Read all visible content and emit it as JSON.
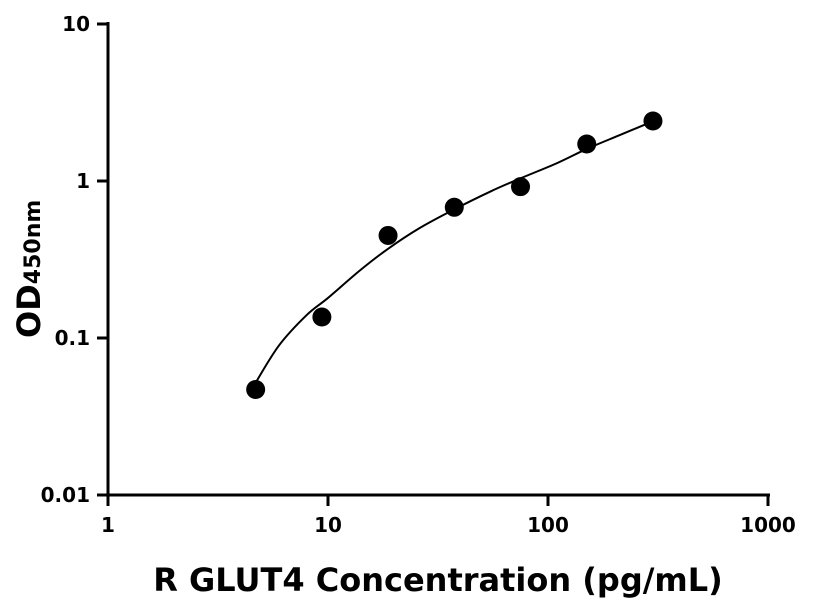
{
  "chart_data": {
    "type": "scatter",
    "xlabel": "R GLUT4 Concentration (pg/mL)",
    "ylabel_main": "OD",
    "ylabel_sub": "450nm",
    "x_scale": "log",
    "y_scale": "log",
    "xlim": [
      1,
      1000
    ],
    "ylim": [
      0.01,
      10
    ],
    "x_ticks": [
      "1",
      "10",
      "100",
      "1000"
    ],
    "y_ticks": [
      "0.01",
      "0.1",
      "1",
      "10"
    ],
    "grid": false,
    "marker_color": "#000000",
    "points": {
      "x": [
        4.69,
        9.38,
        18.75,
        37.5,
        75,
        150,
        300
      ],
      "y": [
        0.047,
        0.136,
        0.45,
        0.68,
        0.92,
        1.72,
        2.41
      ]
    },
    "fit_curve": {
      "x": [
        4.69,
        6,
        8,
        10,
        14,
        18.75,
        26,
        37.5,
        55,
        75,
        110,
        150,
        210,
        300
      ],
      "y": [
        0.052,
        0.09,
        0.14,
        0.18,
        0.27,
        0.37,
        0.5,
        0.66,
        0.86,
        1.04,
        1.3,
        1.6,
        1.95,
        2.4
      ]
    }
  }
}
